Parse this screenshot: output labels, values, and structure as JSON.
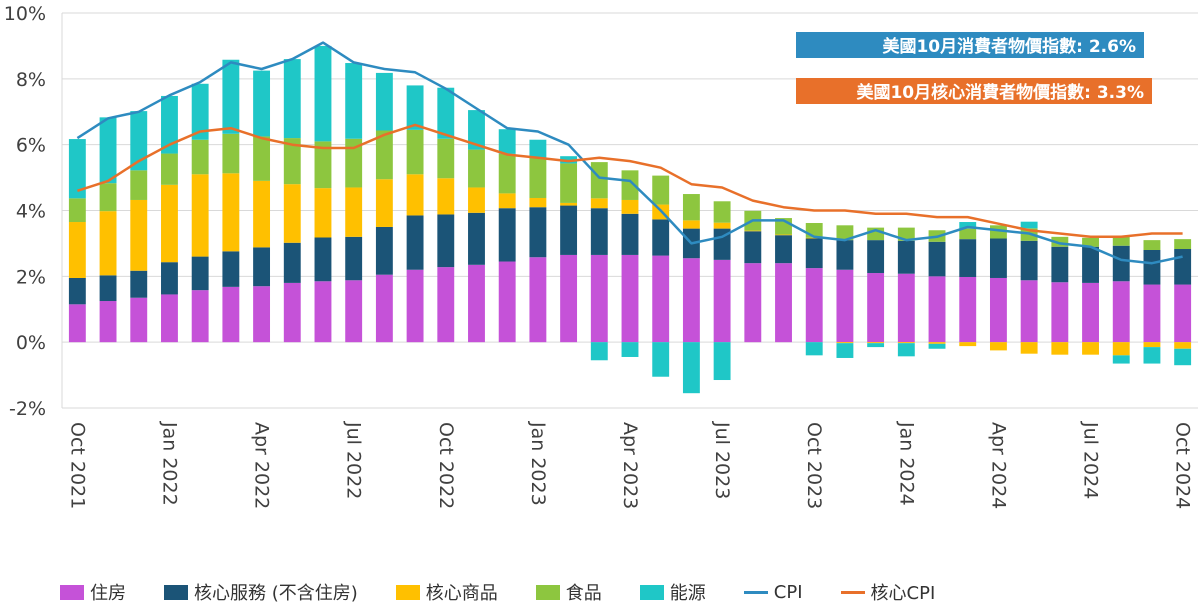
{
  "chart_data": {
    "type": "bar",
    "stacked": true,
    "ylim": [
      -2,
      10
    ],
    "yticks": [
      "10%",
      "8%",
      "6%",
      "4%",
      "2%",
      "0%",
      "-2%"
    ],
    "ytick_values": [
      10,
      8,
      6,
      4,
      2,
      0,
      -2
    ],
    "grid": true,
    "legend_position": "bottom",
    "categories": [
      "Oct 2021",
      "Nov 2021",
      "Dec 2021",
      "Jan 2022",
      "Feb 2022",
      "Mar 2022",
      "Apr 2022",
      "May 2022",
      "Jun 2022",
      "Jul 2022",
      "Aug 2022",
      "Sep 2022",
      "Oct 2022",
      "Nov 2022",
      "Dec 2022",
      "Jan 2023",
      "Feb 2023",
      "Mar 2023",
      "Apr 2023",
      "May 2023",
      "Jun 2023",
      "Jul 2023",
      "Aug 2023",
      "Sep 2023",
      "Oct 2023",
      "Nov 2023",
      "Dec 2023",
      "Jan 2024",
      "Feb 2024",
      "Mar 2024",
      "Apr 2024",
      "May 2024",
      "Jun 2024",
      "Jul 2024",
      "Aug 2024",
      "Sep 2024",
      "Oct 2024"
    ],
    "x_tick_labels": [
      {
        "index": 0,
        "label": "Oct 2021"
      },
      {
        "index": 3,
        "label": "Jan 2022"
      },
      {
        "index": 6,
        "label": "Apr 2022"
      },
      {
        "index": 9,
        "label": "Jul 2022"
      },
      {
        "index": 12,
        "label": "Oct 2022"
      },
      {
        "index": 15,
        "label": "Jan 2023"
      },
      {
        "index": 18,
        "label": "Apr 2023"
      },
      {
        "index": 21,
        "label": "Jul 2023"
      },
      {
        "index": 24,
        "label": "Oct 2023"
      },
      {
        "index": 27,
        "label": "Jan 2024"
      },
      {
        "index": 30,
        "label": "Apr 2024"
      },
      {
        "index": 33,
        "label": "Jul 2024"
      },
      {
        "index": 36,
        "label": "Oct 2024"
      }
    ],
    "series": [
      {
        "name": "住房",
        "type": "bar",
        "color": "#c552d8",
        "values": [
          1.15,
          1.25,
          1.35,
          1.45,
          1.58,
          1.68,
          1.7,
          1.8,
          1.85,
          1.88,
          2.05,
          2.2,
          2.28,
          2.35,
          2.45,
          2.58,
          2.65,
          2.65,
          2.65,
          2.63,
          2.55,
          2.5,
          2.4,
          2.4,
          2.25,
          2.2,
          2.1,
          2.08,
          2.0,
          1.98,
          1.95,
          1.88,
          1.82,
          1.8,
          1.85,
          1.75,
          1.75
        ]
      },
      {
        "name": "核心服務 (不含住房)",
        "type": "bar",
        "color": "#1b5477",
        "values": [
          0.8,
          0.78,
          0.82,
          0.98,
          1.02,
          1.08,
          1.18,
          1.22,
          1.33,
          1.32,
          1.45,
          1.65,
          1.6,
          1.58,
          1.62,
          1.52,
          1.5,
          1.42,
          1.25,
          1.1,
          0.9,
          0.95,
          0.97,
          0.85,
          0.9,
          0.9,
          1.0,
          1.0,
          1.05,
          1.15,
          1.2,
          1.2,
          1.08,
          1.1,
          1.08,
          1.05,
          1.08
        ]
      },
      {
        "name": "核心商品",
        "type": "bar",
        "color": "#ffc000",
        "values": [
          1.7,
          1.95,
          2.15,
          2.35,
          2.5,
          2.37,
          2.02,
          1.78,
          1.5,
          1.5,
          1.45,
          1.25,
          1.1,
          0.77,
          0.45,
          0.28,
          0.08,
          0.3,
          0.42,
          0.45,
          0.25,
          0.18,
          0.02,
          0.02,
          0.02,
          -0.03,
          -0.03,
          -0.03,
          -0.05,
          -0.12,
          -0.25,
          -0.35,
          -0.38,
          -0.38,
          -0.4,
          -0.15,
          -0.2
        ]
      },
      {
        "name": "食品",
        "type": "bar",
        "color": "#8dc63f",
        "values": [
          0.72,
          0.85,
          0.9,
          0.95,
          1.05,
          1.2,
          1.35,
          1.4,
          1.42,
          1.48,
          1.48,
          1.35,
          1.2,
          1.15,
          1.2,
          1.22,
          1.2,
          1.1,
          0.9,
          0.88,
          0.8,
          0.65,
          0.6,
          0.5,
          0.45,
          0.45,
          0.38,
          0.4,
          0.35,
          0.32,
          0.4,
          0.38,
          0.3,
          0.27,
          0.28,
          0.3,
          0.3
        ]
      },
      {
        "name": "能源",
        "type": "bar",
        "color": "#1fc7c7",
        "values": [
          1.8,
          2.0,
          1.8,
          1.75,
          1.7,
          2.25,
          2.0,
          2.4,
          2.9,
          2.3,
          1.75,
          1.35,
          1.55,
          1.2,
          0.75,
          0.55,
          0.22,
          -0.55,
          -0.45,
          -1.05,
          -1.55,
          -1.15,
          0.0,
          0.0,
          -0.4,
          -0.45,
          -0.12,
          -0.4,
          -0.15,
          0.2,
          0.0,
          0.2,
          0.0,
          0.0,
          -0.25,
          -0.5,
          -0.5
        ]
      },
      {
        "name": "CPI",
        "type": "line",
        "color": "#2e8bc0",
        "values": [
          6.2,
          6.8,
          7.0,
          7.5,
          7.9,
          8.5,
          8.3,
          8.6,
          9.1,
          8.5,
          8.3,
          8.2,
          7.7,
          7.1,
          6.5,
          6.4,
          6.0,
          5.0,
          4.9,
          4.0,
          3.0,
          3.2,
          3.7,
          3.7,
          3.2,
          3.1,
          3.4,
          3.1,
          3.2,
          3.5,
          3.4,
          3.3,
          3.0,
          2.9,
          2.5,
          2.4,
          2.6
        ]
      },
      {
        "name": "核心CPI",
        "type": "line",
        "color": "#e8702a",
        "values": [
          4.6,
          4.9,
          5.5,
          6.0,
          6.4,
          6.5,
          6.2,
          6.0,
          5.9,
          5.9,
          6.3,
          6.6,
          6.3,
          6.0,
          5.7,
          5.6,
          5.5,
          5.6,
          5.5,
          5.3,
          4.8,
          4.7,
          4.3,
          4.1,
          4.0,
          4.0,
          3.9,
          3.9,
          3.8,
          3.8,
          3.6,
          3.4,
          3.3,
          3.2,
          3.2,
          3.3,
          3.3
        ]
      }
    ],
    "annotations": [
      {
        "text": "美國10月消費者物價指數: 2.6%",
        "color": "#2e8bc0"
      },
      {
        "text": "美國10月核心消費者物價指數: 3.3%",
        "color": "#e8702a"
      }
    ]
  },
  "legend": [
    {
      "label": "住房",
      "color": "#c552d8",
      "kind": "bar"
    },
    {
      "label": "核心服務 (不含住房)",
      "color": "#1b5477",
      "kind": "bar"
    },
    {
      "label": "核心商品",
      "color": "#ffc000",
      "kind": "bar"
    },
    {
      "label": "食品",
      "color": "#8dc63f",
      "kind": "bar"
    },
    {
      "label": "能源",
      "color": "#1fc7c7",
      "kind": "bar"
    },
    {
      "label": "CPI",
      "color": "#2e8bc0",
      "kind": "line"
    },
    {
      "label": "核心CPI",
      "color": "#e8702a",
      "kind": "line"
    }
  ]
}
